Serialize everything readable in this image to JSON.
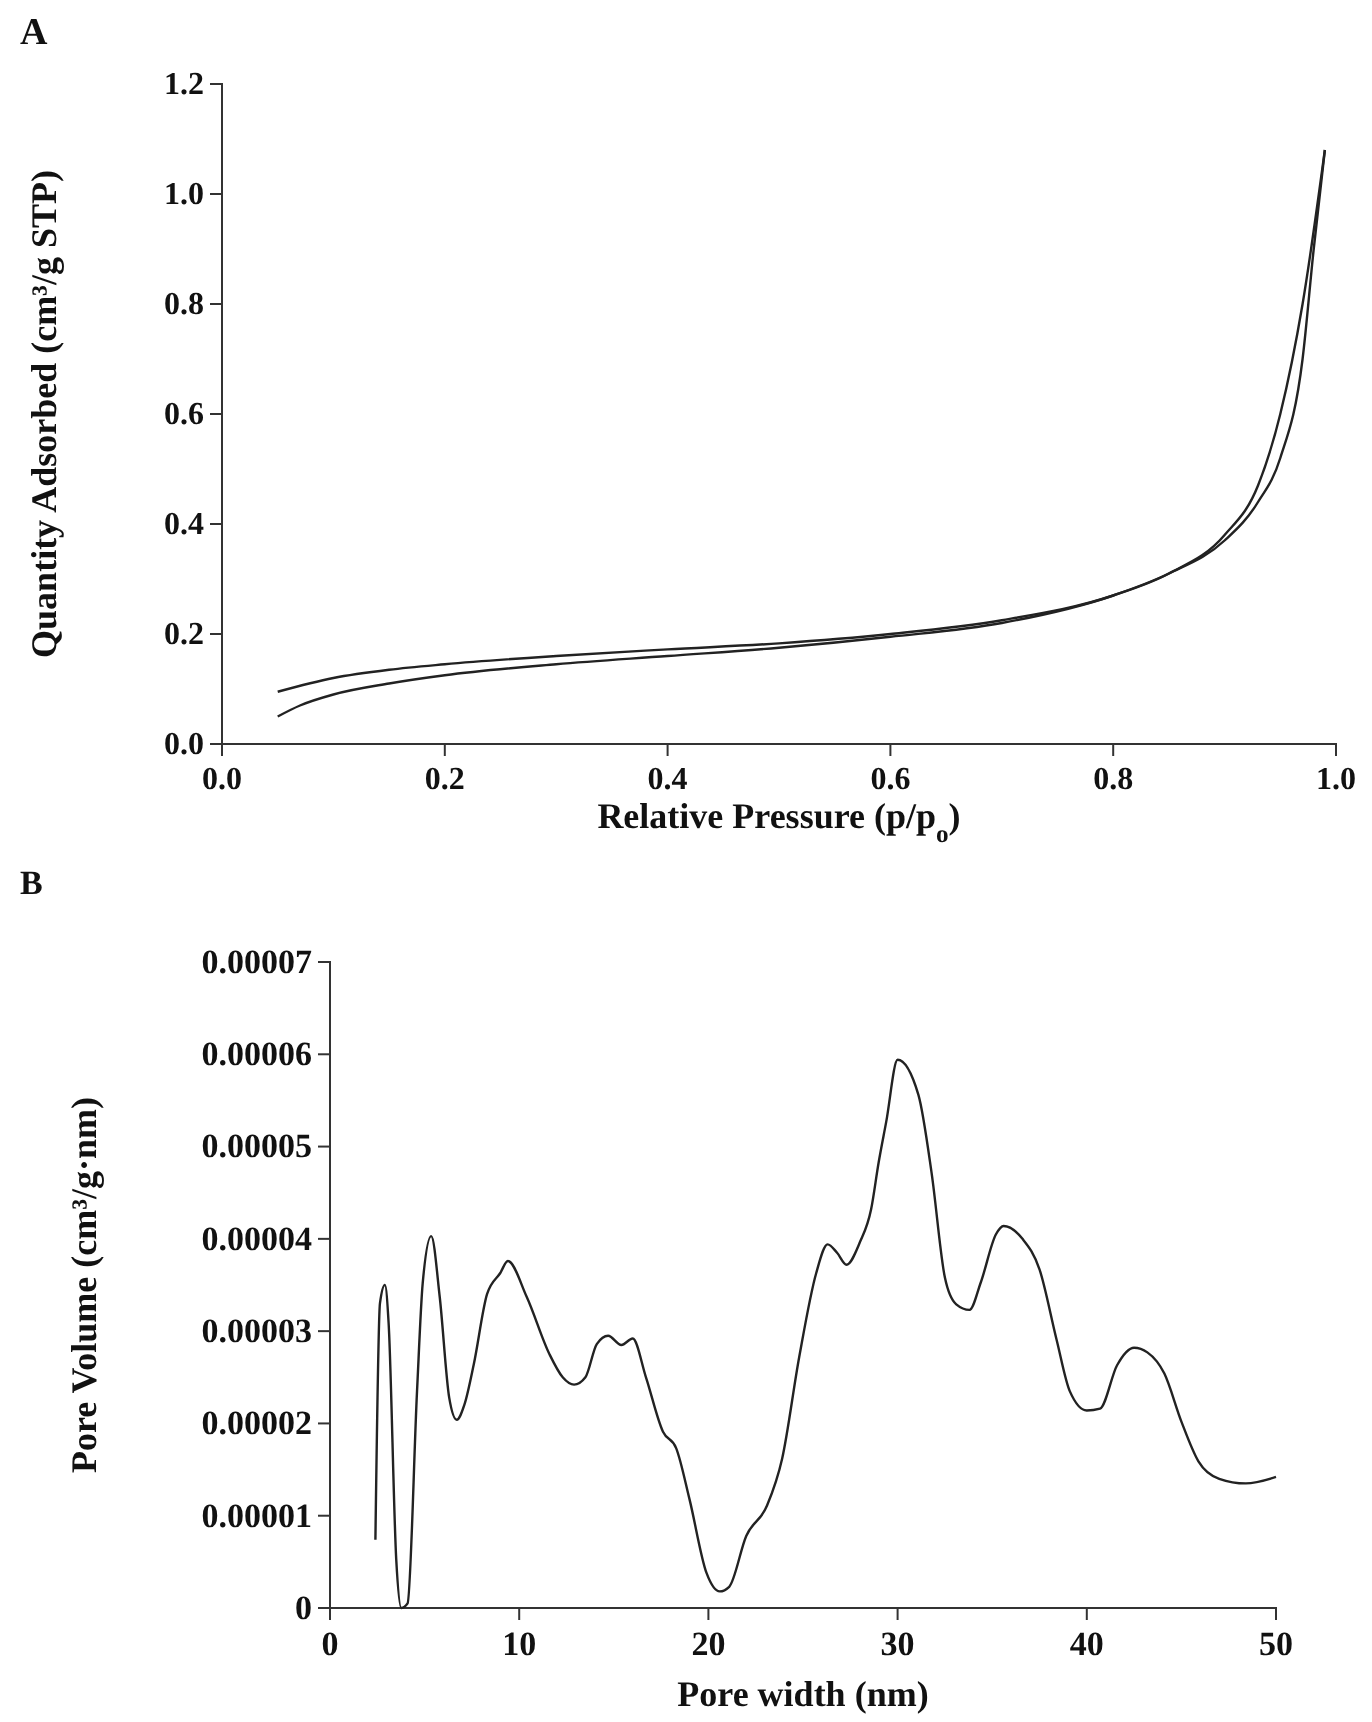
{
  "chart_data": [
    {
      "type": "line",
      "title": "A",
      "xlabel": "Relative Pressure (p/p$_{o}$)",
      "ylabel": "Quantity Adsorbed (cm³/g STP)",
      "xlim": [
        0,
        1
      ],
      "ylim": [
        0,
        1.2
      ],
      "xticks": [
        {
          "value": 0,
          "label": "0.0"
        },
        {
          "value": 0.2,
          "label": "0.2"
        },
        {
          "value": 0.4,
          "label": "0.4"
        },
        {
          "value": 0.6,
          "label": "0.6"
        },
        {
          "value": 0.8,
          "label": "0.8"
        },
        {
          "value": 1,
          "label": "1.0"
        }
      ],
      "yticks": [
        {
          "value": 0,
          "label": "0.0"
        },
        {
          "value": 0.2,
          "label": "0.2"
        },
        {
          "value": 0.4,
          "label": "0.4"
        },
        {
          "value": 0.6,
          "label": "0.6"
        },
        {
          "value": 0.8,
          "label": "0.8"
        },
        {
          "value": 1,
          "label": "1.0"
        },
        {
          "value": 1.2,
          "label": "1.2"
        }
      ],
      "grid": false,
      "marker": "none",
      "line_style": "solid",
      "series": [
        {
          "color": "#222222",
          "x": [
            0.05,
            0.1,
            0.15,
            0.2,
            0.3,
            0.4,
            0.5,
            0.6,
            0.7,
            0.8,
            0.85,
            0.9,
            0.93,
            0.95,
            0.97,
            0.99
          ],
          "values": [
            0.095,
            0.12,
            0.135,
            0.145,
            0.16,
            0.172,
            0.183,
            0.2,
            0.225,
            0.27,
            0.31,
            0.38,
            0.47,
            0.6,
            0.8,
            1.08
          ]
        },
        {
          "color": "#222222",
          "x": [
            0.05,
            0.07,
            0.1,
            0.15,
            0.2,
            0.3,
            0.4,
            0.5,
            0.6,
            0.7,
            0.8,
            0.85,
            0.9,
            0.93,
            0.95,
            0.97,
            0.98,
            0.99
          ],
          "values": [
            0.05,
            0.07,
            0.09,
            0.11,
            0.125,
            0.145,
            0.16,
            0.175,
            0.195,
            0.22,
            0.27,
            0.31,
            0.37,
            0.44,
            0.52,
            0.7,
            0.9,
            1.08
          ]
        }
      ]
    },
    {
      "type": "line",
      "title": "B",
      "xlabel": "Pore width (nm)",
      "ylabel": "Pore Volume (cm³/g·nm)",
      "xlim": [
        0,
        50
      ],
      "ylim": [
        0,
        7e-05
      ],
      "xticks": [
        0,
        10,
        20,
        30,
        40,
        50
      ],
      "yticks": [
        {
          "value": 0,
          "label": "0"
        },
        {
          "value": 1e-05,
          "label": "0.00001"
        },
        {
          "value": 2e-05,
          "label": "0.00002"
        },
        {
          "value": 3e-05,
          "label": "0.00003"
        },
        {
          "value": 4e-05,
          "label": "0.00004"
        },
        {
          "value": 5e-05,
          "label": "0.00005"
        },
        {
          "value": 6e-05,
          "label": "0.00006"
        },
        {
          "value": 7e-05,
          "label": "0.00007"
        }
      ],
      "grid": false,
      "marker": "none",
      "line_style": "solid",
      "series": [
        {
          "color": "#222222",
          "x": [
            2.4,
            2.64,
            2.9,
            3.1,
            3.5,
            3.77,
            4.1,
            4.6,
            4.9,
            5.35,
            5.8,
            6.3,
            6.7,
            7.1,
            7.6,
            8.3,
            9.0,
            9.4,
            10.4,
            11.6,
            12.3,
            12.9,
            13.5,
            14.1,
            14.7,
            15.4,
            16.0,
            16.7,
            17.6,
            18.3,
            19.0,
            19.9,
            20.6,
            21.1,
            22.0,
            23.1,
            23.9,
            24.8,
            25.7,
            26.3,
            26.8,
            27.3,
            28.0,
            28.6,
            29.0,
            29.4,
            30.0,
            31.1,
            31.8,
            32.5,
            33.1,
            33.8,
            34.4,
            35.2,
            35.6,
            36.6,
            37.5,
            38.4,
            39.1,
            40.0,
            40.7,
            41.6,
            42.5,
            43.2,
            44.1,
            45.0,
            45.9,
            47.0,
            48.4,
            50.0
          ],
          "values": [
            7.4e-06,
            3.3e-05,
            3.5e-05,
            3.08e-05,
            5.3e-06,
            0,
            5e-07,
            2.35e-05,
            3.52e-05,
            4.03e-05,
            3.37e-05,
            2.28e-05,
            2.04e-05,
            2.2e-05,
            2.64e-05,
            3.4e-05,
            3.63e-05,
            3.76e-05,
            3.37e-05,
            2.75e-05,
            2.5e-05,
            2.42e-05,
            2.5e-05,
            2.86e-05,
            2.95e-05,
            2.85e-05,
            2.92e-05,
            2.5e-05,
            1.91e-05,
            1.73e-05,
            1.18e-05,
            3.8e-06,
            1.8e-06,
            2.3e-06,
            7.8e-06,
            1.11e-05,
            1.62e-05,
            2.72e-05,
            3.63e-05,
            3.94e-05,
            3.85e-05,
            3.72e-05,
            3.96e-05,
            4.32e-05,
            4.83e-05,
            5.27e-05,
            5.94e-05,
            5.56e-05,
            4.71e-05,
            3.58e-05,
            3.29e-05,
            3.23e-05,
            3.53e-05,
            4.05e-05,
            4.14e-05,
            4e-05,
            3.67e-05,
            2.91e-05,
            2.35e-05,
            2.14e-05,
            2.16e-05,
            2.63e-05,
            2.82e-05,
            2.77e-05,
            2.54e-05,
            2.02e-05,
            1.59e-05,
            1.4e-05,
            1.35e-05,
            1.42e-05
          ]
        }
      ]
    }
  ]
}
